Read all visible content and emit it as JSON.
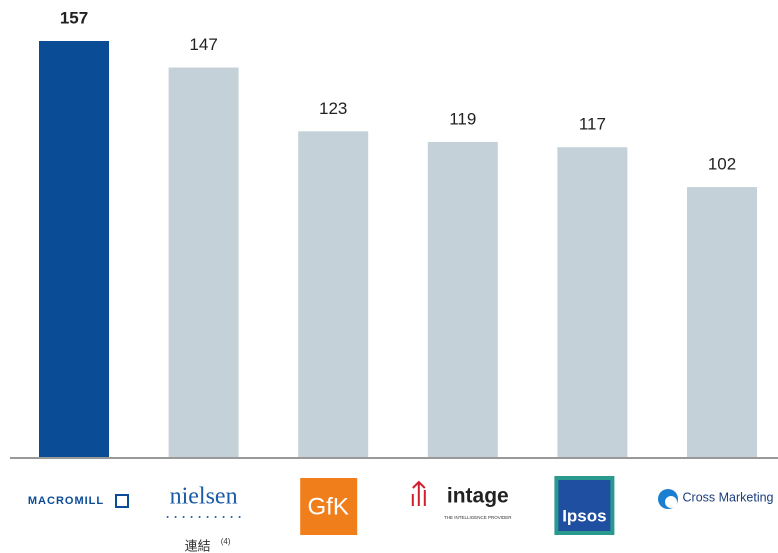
{
  "chart_data": {
    "type": "bar",
    "categories": [
      "MACROMILL",
      "nielsen",
      "GfK",
      "intage",
      "Ipsos",
      "Cross Marketing"
    ],
    "values": [
      157,
      147,
      123,
      119,
      117,
      102
    ],
    "colors": [
      "#0b4c96",
      "#c5d1d9",
      "#c5d1d9",
      "#c5d1d9",
      "#c5d1d9",
      "#c5d1d9"
    ],
    "intage_tagline": "THE INTELLIGENCE PROVIDER",
    "note": "連結",
    "note_ref": "(4)"
  }
}
